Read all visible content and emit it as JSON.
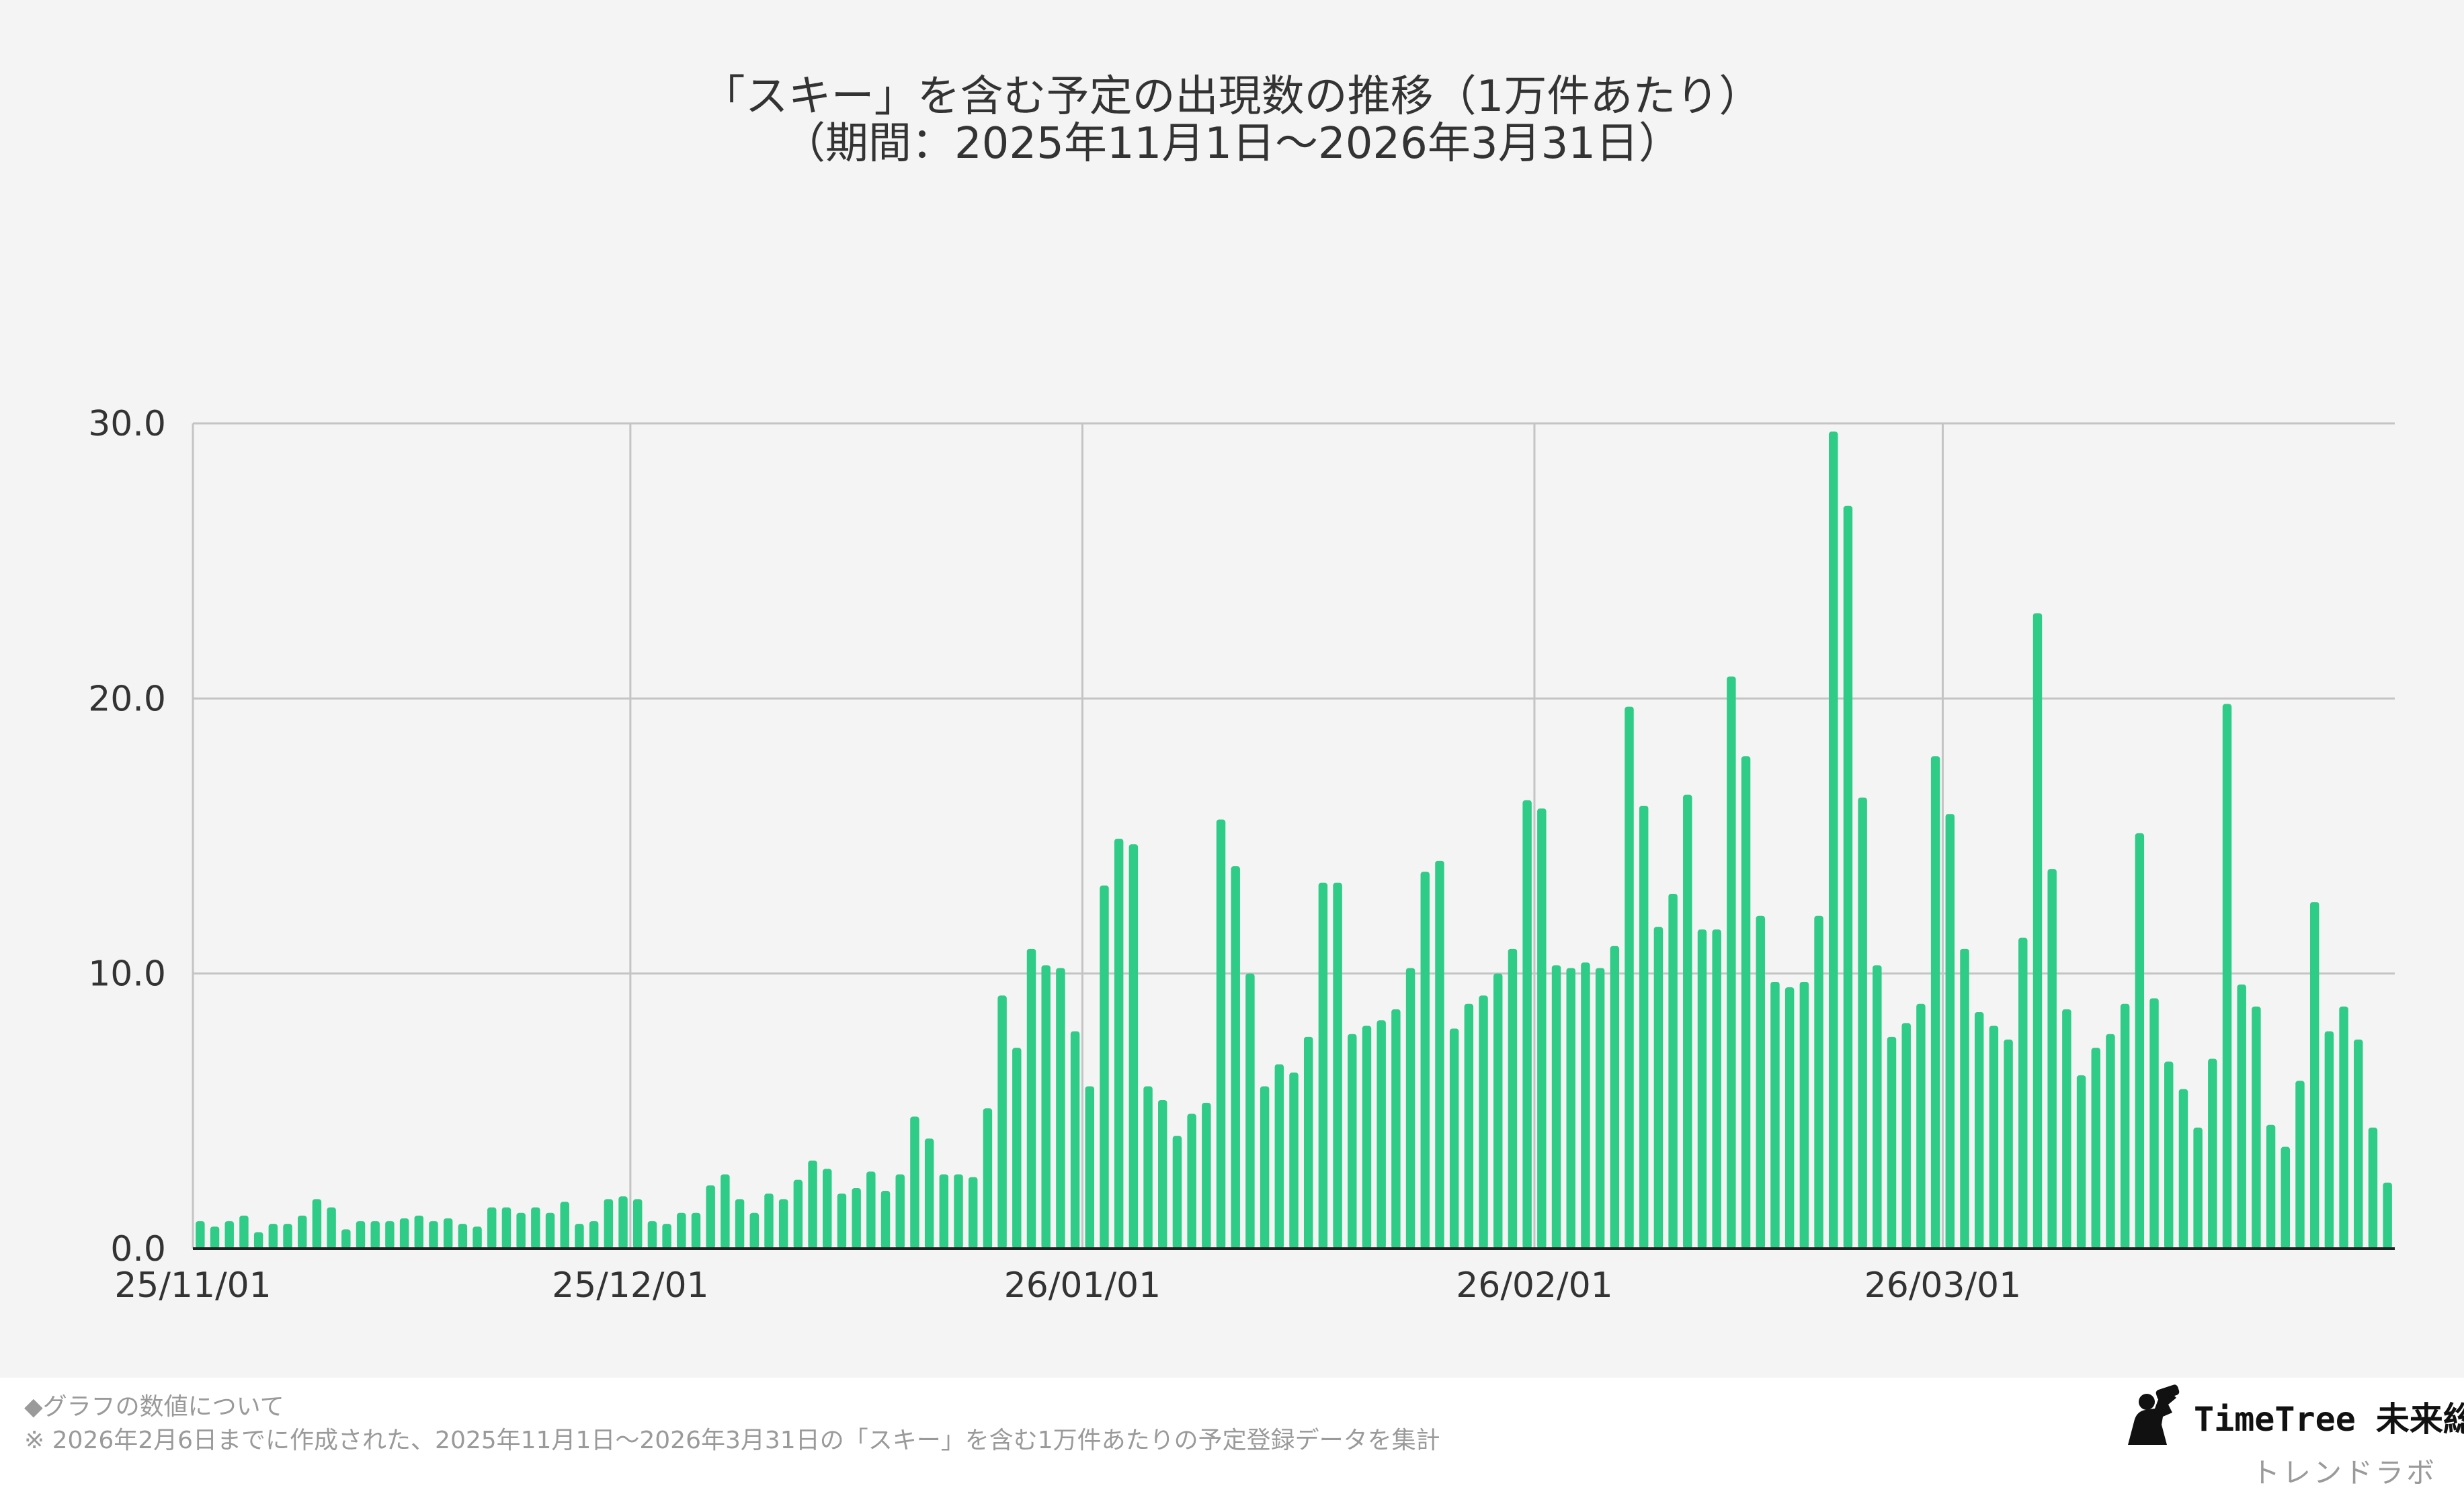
{
  "chart_data": {
    "type": "bar",
    "title": "「スキー」を含む予定の出現数の推移（1万件あたり）",
    "subtitle": "（期間：2025年11月1日〜2026年3月31日）",
    "xlabel": "",
    "ylabel": "",
    "x_tick_labels": [
      "25/11/01",
      "25/12/01",
      "26/01/01",
      "26/02/01",
      "26/03/01"
    ],
    "x_tick_indices": [
      0,
      30,
      61,
      92,
      120
    ],
    "y_tick_labels": [
      "0.0",
      "10.0",
      "20.0",
      "30.0"
    ],
    "y_tick_values": [
      0,
      10,
      20,
      30
    ],
    "ylim": [
      0,
      30
    ],
    "grid": true,
    "bar_color": "#2ecc87",
    "start_date": "2025-11-01",
    "values": [
      1.0,
      0.8,
      1.0,
      1.2,
      0.6,
      0.9,
      0.9,
      1.2,
      1.8,
      1.5,
      0.7,
      1.0,
      1.0,
      1.0,
      1.1,
      1.2,
      1.0,
      1.1,
      0.9,
      0.8,
      1.5,
      1.5,
      1.3,
      1.5,
      1.3,
      1.7,
      0.9,
      1.0,
      1.8,
      1.9,
      1.8,
      1.0,
      0.9,
      1.3,
      1.3,
      2.3,
      2.7,
      1.8,
      1.3,
      2.0,
      1.8,
      2.5,
      3.2,
      2.9,
      2.0,
      2.2,
      2.8,
      2.1,
      2.7,
      4.8,
      4.0,
      2.7,
      2.7,
      2.6,
      5.1,
      9.2,
      7.3,
      10.9,
      10.3,
      10.2,
      7.9,
      5.9,
      13.2,
      14.9,
      14.7,
      5.9,
      5.4,
      4.1,
      4.9,
      5.3,
      15.6,
      13.9,
      10.0,
      5.9,
      6.7,
      6.4,
      7.7,
      13.3,
      13.3,
      7.8,
      8.1,
      8.3,
      8.7,
      10.2,
      13.7,
      14.1,
      8.0,
      8.9,
      9.2,
      10.0,
      10.9,
      16.3,
      16.0,
      10.3,
      10.2,
      10.4,
      10.2,
      11.0,
      19.7,
      16.1,
      11.7,
      12.9,
      16.5,
      11.6,
      11.6,
      20.8,
      17.9,
      12.1,
      9.7,
      9.5,
      9.7,
      12.1,
      29.7,
      27.0,
      16.4,
      10.3,
      7.7,
      8.2,
      8.9,
      17.9,
      15.8,
      10.9,
      8.6,
      8.1,
      7.6,
      11.3,
      23.1,
      13.8,
      8.7,
      6.3,
      7.3,
      7.8,
      8.9,
      15.1,
      9.1,
      6.8,
      5.8,
      4.4,
      6.9,
      19.8,
      9.6,
      8.8,
      4.5,
      3.7,
      6.1,
      12.6,
      7.9,
      8.8,
      7.6,
      4.4,
      2.4
    ]
  },
  "footer": {
    "note_heading": "◆グラフの数値について",
    "note_body": "※ 2026年2月6日までに作成された、2025年11月1日〜2026年3月31日の「スキー」を含む1万件あたりの予定登録データを集計"
  },
  "brand": {
    "name": "TimeTree 未来総研",
    "sub": "トレンドラボ",
    "icon": "observer-binoculars-icon"
  }
}
